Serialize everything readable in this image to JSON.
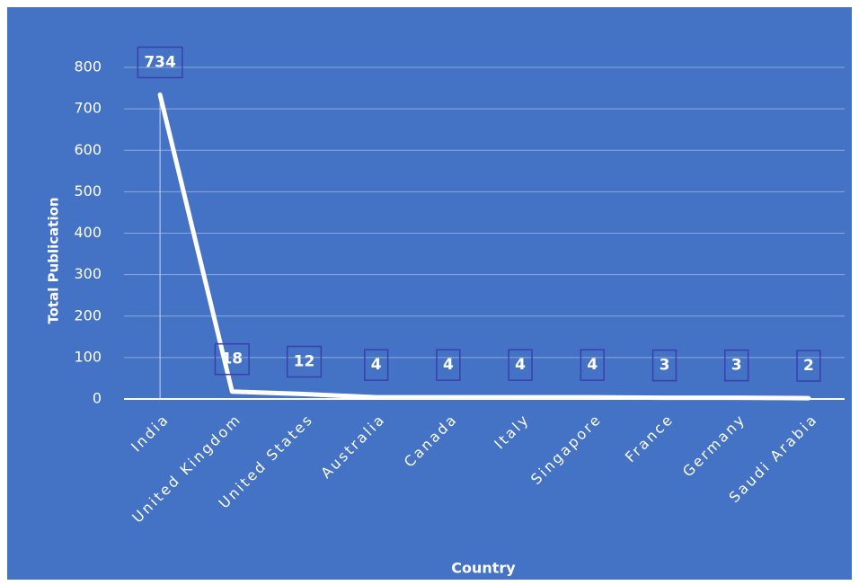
{
  "chart_data": {
    "type": "line",
    "categories": [
      "India",
      "United Kingdom",
      "United States",
      "Australia",
      "Canada",
      "Italy",
      "Singapore",
      "France",
      "Germany",
      "Saudi Arabia"
    ],
    "values": [
      734,
      18,
      12,
      4,
      4,
      4,
      4,
      3,
      3,
      2
    ],
    "color": "#ffffff",
    "ylabel": "Total Publication",
    "xlabel": "Country",
    "ylim": [
      0,
      800
    ],
    "yticks": [
      0,
      100,
      200,
      300,
      400,
      500,
      600,
      700,
      800
    ],
    "grid": true
  }
}
